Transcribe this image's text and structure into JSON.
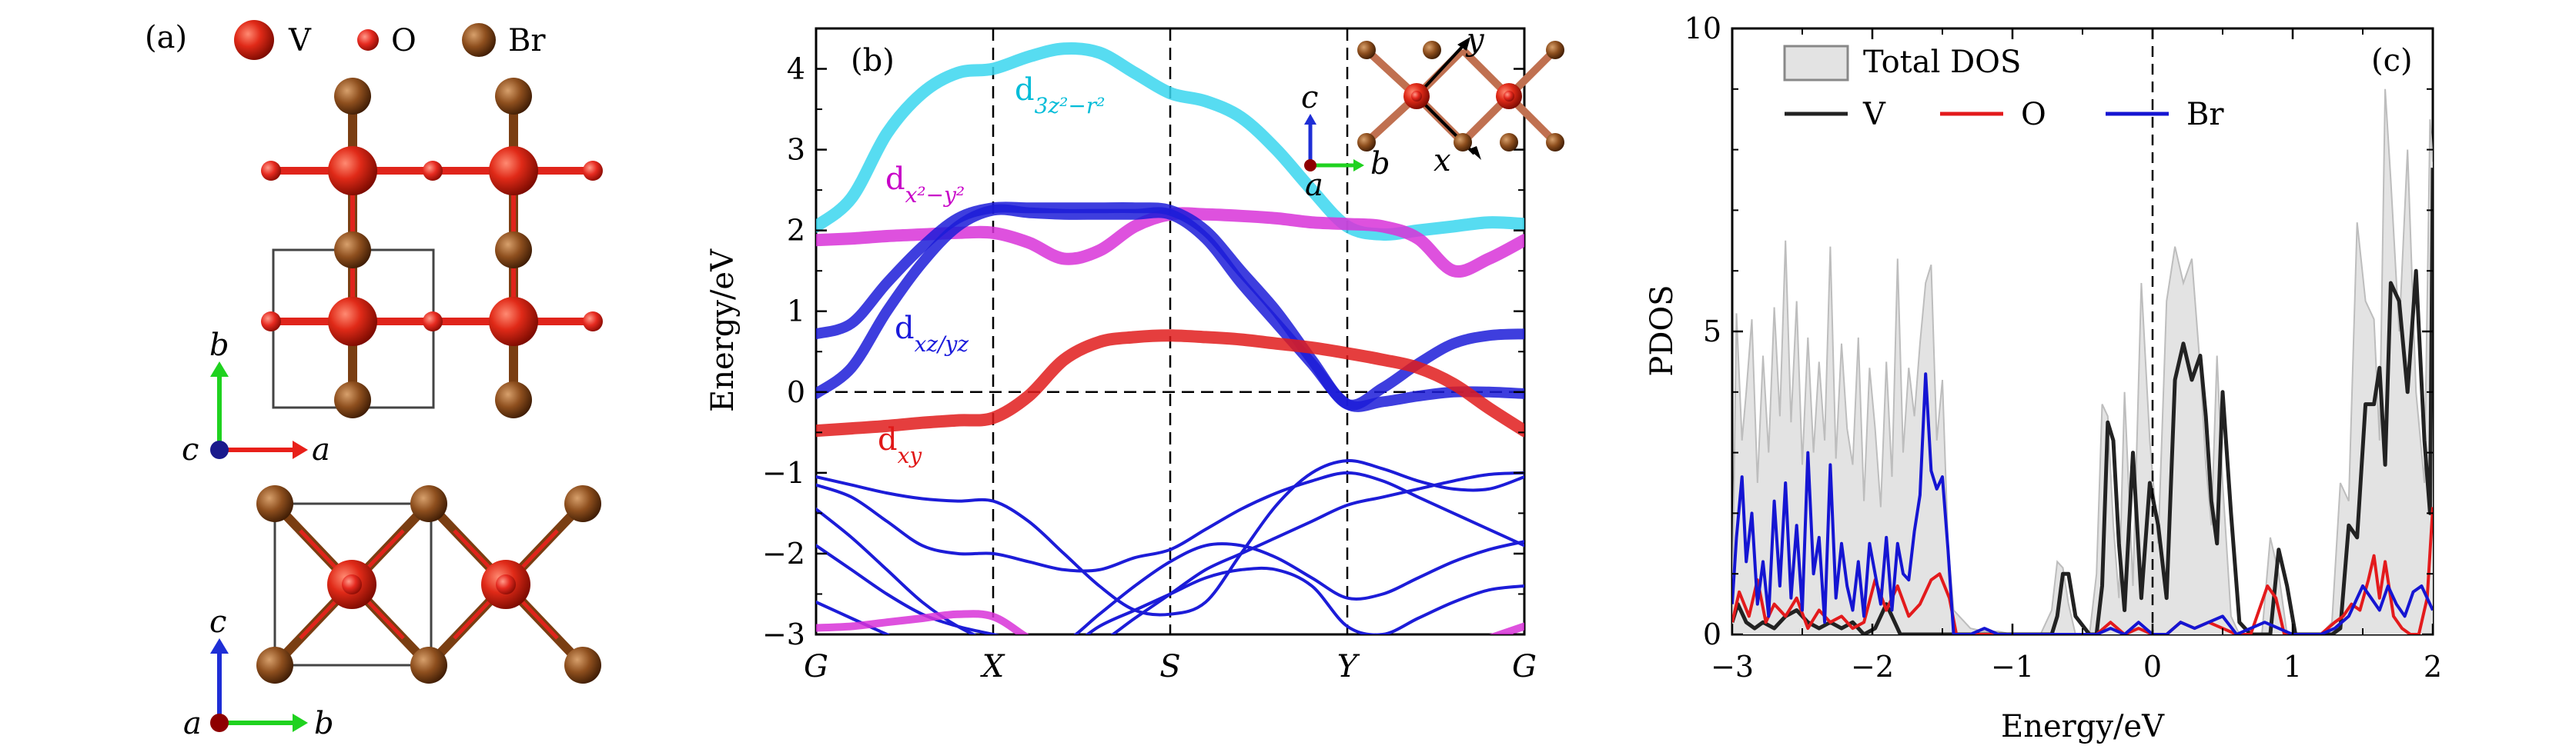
{
  "panel_a": {
    "label": "(a)",
    "legend": [
      {
        "name": "V",
        "color": "#d42416"
      },
      {
        "name": "O",
        "color": "#e2201a"
      },
      {
        "name": "Br",
        "color": "#8a4b1c"
      }
    ],
    "top_axes": {
      "vertical": "b",
      "horizontal": "a",
      "out_of_plane": "c"
    },
    "bottom_axes": {
      "vertical": "c",
      "horizontal": "b",
      "out_of_plane": "a"
    },
    "colors": {
      "bond_red": "#e0241b",
      "bond_brown": "#7a3e12",
      "cell": "#444444",
      "axis_green": "#1fd21f",
      "axis_red": "#e8201a",
      "axis_blue": "#1e2ed6",
      "dot_blue": "#1a1a8c",
      "dot_red": "#8e0000"
    }
  },
  "chart_data": [
    {
      "type": "line",
      "panel_label": "(b)",
      "ylabel": "Energy/eV",
      "ylim": [
        -3,
        4.5
      ],
      "yticks": [
        -3,
        -2,
        -1,
        0,
        1,
        2,
        3,
        4
      ],
      "kpoints": [
        "G",
        "X",
        "S",
        "Y",
        "G"
      ],
      "band_labels": [
        {
          "text": "d",
          "sub": "3z²−r²",
          "color": "#00bcd8"
        },
        {
          "text": "d",
          "sub": "x²−y²",
          "color": "#c800c8"
        },
        {
          "text": "d",
          "sub": "xz/yz",
          "color": "#1a1adb"
        },
        {
          "text": "d",
          "sub": "xy",
          "color": "#e01818"
        }
      ],
      "inset_axes": {
        "c": "c",
        "b": "b",
        "a": "a",
        "x": "x",
        "y": "y"
      },
      "bands": [
        {
          "name": "d3z2-r2",
          "color": "#39d6ee",
          "width": 16,
          "y": [
            2.05,
            2.4,
            3.2,
            3.7,
            3.95,
            4.0,
            4.15,
            4.25,
            4.2,
            3.95,
            3.7,
            3.6,
            3.4,
            3.0,
            2.5,
            2.05,
            1.95,
            2.0,
            2.05,
            2.1,
            2.08
          ]
        },
        {
          "name": "dx2-y2",
          "color": "#d832d8",
          "width": 16,
          "y": [
            1.88,
            1.9,
            1.93,
            1.95,
            1.97,
            1.97,
            1.85,
            1.65,
            1.75,
            2.05,
            2.2,
            2.2,
            2.18,
            2.15,
            2.1,
            2.08,
            2.05,
            1.9,
            1.5,
            1.65,
            1.88
          ]
        },
        {
          "name": "dxz/yz-1",
          "color": "#1c1cd8",
          "width": 14,
          "y": [
            0.72,
            0.85,
            1.35,
            1.8,
            2.15,
            2.28,
            2.28,
            2.28,
            2.28,
            2.28,
            2.25,
            2.0,
            1.5,
            1.0,
            0.4,
            -0.15,
            0.05,
            0.35,
            0.6,
            0.7,
            0.72
          ]
        },
        {
          "name": "dxz/yz-2",
          "color": "#1c1cd8",
          "width": 14,
          "y": [
            -0.02,
            0.3,
            1.0,
            1.6,
            2.05,
            2.25,
            2.22,
            2.2,
            2.2,
            2.2,
            2.2,
            1.9,
            1.35,
            0.85,
            0.35,
            -0.15,
            -0.12,
            -0.05,
            0.0,
            0.0,
            -0.02
          ]
        },
        {
          "name": "dxy",
          "color": "#e01c1c",
          "width": 16,
          "y": [
            -0.48,
            -0.45,
            -0.42,
            -0.38,
            -0.35,
            -0.32,
            -0.05,
            0.4,
            0.62,
            0.68,
            0.7,
            0.68,
            0.65,
            0.6,
            0.55,
            0.48,
            0.4,
            0.3,
            0.1,
            -0.2,
            -0.48
          ]
        },
        {
          "name": "valence-1",
          "color": "#1c1cd8",
          "width": 4,
          "y": [
            -1.05,
            -1.15,
            -1.25,
            -1.32,
            -1.35,
            -1.35,
            -1.6,
            -2.0,
            -2.4,
            -2.7,
            -2.75,
            -2.6,
            -2.0,
            -1.4,
            -1.0,
            -0.85,
            -0.95,
            -1.1,
            -1.2,
            -1.2,
            -1.05
          ]
        },
        {
          "name": "valence-2",
          "color": "#1c1cd8",
          "width": 4,
          "y": [
            -1.15,
            -1.3,
            -1.6,
            -1.9,
            -2.0,
            -2.0,
            -2.1,
            -2.2,
            -2.2,
            -2.05,
            -1.95,
            -1.7,
            -1.45,
            -1.25,
            -1.1,
            -1.0,
            -1.1,
            -1.3,
            -1.5,
            -1.7,
            -1.9
          ]
        },
        {
          "name": "valence-3",
          "color": "#1c1cd8",
          "width": 4,
          "y": [
            -1.9,
            -2.2,
            -2.5,
            -2.75,
            -2.9,
            -3.0,
            -3.1,
            -3.2,
            -3.1,
            -2.8,
            -2.5,
            -2.2,
            -2.0,
            -1.8,
            -1.6,
            -1.4,
            -1.3,
            -1.2,
            -1.1,
            -1.02,
            -1.0
          ]
        },
        {
          "name": "valence-4",
          "color": "#1c1cd8",
          "width": 4,
          "y": [
            -1.45,
            -1.8,
            -2.2,
            -2.6,
            -2.9,
            -3.1,
            -3.2,
            -3.1,
            -2.75,
            -2.4,
            -2.1,
            -1.9,
            -1.9,
            -2.05,
            -2.3,
            -2.55,
            -2.5,
            -2.3,
            -2.1,
            -1.95,
            -1.85
          ]
        },
        {
          "name": "valence-5",
          "color": "#1c1cd8",
          "width": 4,
          "y": [
            -2.6,
            -2.8,
            -3.0,
            -3.2,
            -3.3,
            -3.3,
            -3.3,
            -3.2,
            -2.9,
            -2.7,
            -2.5,
            -2.3,
            -2.2,
            -2.2,
            -2.4,
            -2.9,
            -3.0,
            -2.8,
            -2.6,
            -2.45,
            -2.4
          ]
        },
        {
          "name": "magenta-low",
          "color": "#d832d8",
          "width": 10,
          "y": [
            -2.92,
            -2.9,
            -2.85,
            -2.8,
            -2.75,
            -2.78,
            -3.05,
            -3.3,
            -3.3,
            -3.3,
            -3.3,
            -3.3,
            -3.3,
            -3.3,
            -3.3,
            -3.3,
            -3.3,
            -3.3,
            -3.2,
            -3.05,
            -2.9
          ]
        }
      ]
    },
    {
      "type": "area",
      "panel_label": "(c)",
      "xlabel": "Energy/eV",
      "ylabel": "PDOS",
      "xlim": [
        -3,
        2
      ],
      "ylim": [
        0,
        10
      ],
      "xticks": [
        -3,
        -2,
        -1,
        0,
        1,
        2
      ],
      "xtick_labels": [
        "−3",
        "−2",
        "−1",
        "0",
        "1",
        "2"
      ],
      "yticks": [
        0,
        5,
        10
      ],
      "legend_placement": "top-left",
      "series": [
        {
          "name": "Total DOS",
          "color": "#bdbdbd",
          "fill": "#e3e3e3",
          "x": [
            -3.0,
            -2.97,
            -2.93,
            -2.9,
            -2.86,
            -2.82,
            -2.78,
            -2.74,
            -2.7,
            -2.66,
            -2.62,
            -2.58,
            -2.54,
            -2.5,
            -2.46,
            -2.42,
            -2.38,
            -2.34,
            -2.3,
            -2.26,
            -2.22,
            -2.18,
            -2.14,
            -2.1,
            -2.06,
            -2.02,
            -1.98,
            -1.94,
            -1.9,
            -1.86,
            -1.82,
            -1.78,
            -1.74,
            -1.7,
            -1.66,
            -1.62,
            -1.58,
            -1.54,
            -1.5,
            -1.46,
            -1.42,
            -1.3,
            -1.2,
            -1.1,
            -1.0,
            -0.8,
            -0.72,
            -0.68,
            -0.64,
            -0.6,
            -0.55,
            -0.45,
            -0.4,
            -0.36,
            -0.32,
            -0.28,
            -0.24,
            -0.2,
            -0.14,
            -0.08,
            -0.02,
            0.04,
            0.1,
            0.16,
            0.22,
            0.28,
            0.34,
            0.38,
            0.42,
            0.46,
            0.5,
            0.56,
            0.62,
            0.7,
            0.78,
            0.84,
            0.9,
            0.96,
            1.02,
            1.1,
            1.2,
            1.28,
            1.34,
            1.4,
            1.46,
            1.52,
            1.58,
            1.62,
            1.66,
            1.7,
            1.76,
            1.82,
            1.88,
            1.94,
            1.98,
            2.0
          ],
          "y": [
            0.3,
            5.3,
            3.2,
            4.0,
            5.2,
            2.5,
            4.6,
            3.0,
            5.4,
            3.6,
            6.5,
            3.5,
            5.5,
            2.8,
            4.9,
            3.0,
            4.5,
            3.2,
            6.4,
            2.9,
            4.8,
            3.4,
            2.8,
            4.9,
            2.2,
            4.4,
            3.4,
            2.1,
            4.5,
            2.6,
            6.2,
            3.0,
            4.4,
            3.6,
            4.8,
            5.8,
            6.1,
            3.2,
            4.2,
            1.5,
            0.4,
            0.1,
            0.05,
            0.05,
            0.0,
            0.0,
            0.4,
            1.2,
            1.1,
            0.5,
            0.0,
            0.0,
            1.0,
            3.8,
            3.6,
            1.8,
            0.6,
            4.0,
            0.8,
            5.8,
            3.2,
            1.5,
            5.5,
            6.4,
            5.8,
            6.2,
            4.4,
            2.8,
            1.8,
            4.6,
            2.5,
            0.3,
            0.0,
            0.0,
            0.0,
            1.6,
            1.0,
            0.0,
            0.0,
            0.0,
            0.0,
            0.2,
            2.5,
            2.2,
            6.8,
            5.5,
            5.2,
            3.2,
            9.0,
            7.5,
            5.0,
            8.0,
            4.0,
            2.5,
            8.5,
            7.8
          ]
        },
        {
          "name": "V",
          "color": "#222222",
          "x": [
            -3.0,
            -2.96,
            -2.9,
            -2.84,
            -2.78,
            -2.7,
            -2.62,
            -2.54,
            -2.46,
            -2.38,
            -2.3,
            -2.22,
            -2.14,
            -2.06,
            -1.98,
            -1.9,
            -1.8,
            -1.7,
            -1.6,
            -1.5,
            -1.45,
            -1.4,
            -1.2,
            -1.0,
            -0.8,
            -0.72,
            -0.68,
            -0.64,
            -0.6,
            -0.55,
            -0.45,
            -0.4,
            -0.36,
            -0.32,
            -0.28,
            -0.24,
            -0.2,
            -0.14,
            -0.08,
            -0.02,
            0.04,
            0.1,
            0.16,
            0.22,
            0.28,
            0.34,
            0.38,
            0.42,
            0.46,
            0.5,
            0.56,
            0.62,
            0.7,
            0.78,
            0.84,
            0.9,
            0.96,
            1.02,
            1.1,
            1.2,
            1.28,
            1.34,
            1.4,
            1.46,
            1.52,
            1.58,
            1.62,
            1.66,
            1.7,
            1.76,
            1.82,
            1.88,
            1.94,
            1.98,
            2.0
          ],
          "y": [
            0.2,
            0.5,
            0.2,
            0.1,
            0.2,
            0.1,
            0.3,
            0.4,
            0.2,
            0.1,
            0.2,
            0.1,
            0.2,
            0.0,
            0.1,
            0.5,
            0.0,
            0.0,
            0.0,
            0.0,
            0.0,
            0.0,
            0.0,
            0.0,
            0.0,
            0.0,
            0.3,
            1.0,
            1.0,
            0.3,
            0.0,
            0.0,
            0.8,
            3.5,
            3.2,
            1.5,
            0.4,
            3.0,
            0.6,
            2.5,
            1.8,
            0.6,
            4.2,
            4.8,
            4.2,
            4.6,
            3.6,
            2.2,
            1.5,
            4.0,
            2.0,
            0.2,
            0.0,
            0.0,
            0.0,
            1.4,
            0.8,
            0.0,
            0.0,
            0.0,
            0.0,
            0.1,
            1.8,
            1.6,
            3.8,
            3.8,
            4.4,
            2.8,
            5.8,
            5.5,
            4.0,
            6.0,
            3.2,
            2.0,
            7.7
          ]
        },
        {
          "name": "O",
          "color": "#e31a1c",
          "x": [
            -3.0,
            -2.95,
            -2.88,
            -2.82,
            -2.76,
            -2.7,
            -2.62,
            -2.54,
            -2.46,
            -2.38,
            -2.3,
            -2.22,
            -2.14,
            -2.06,
            -1.98,
            -1.9,
            -1.82,
            -1.74,
            -1.66,
            -1.58,
            -1.52,
            -1.45,
            -1.4,
            -1.2,
            -1.0,
            -0.6,
            -0.4,
            -0.3,
            -0.2,
            -0.1,
            0.0,
            0.1,
            0.2,
            0.3,
            0.4,
            0.5,
            0.6,
            0.7,
            0.76,
            0.82,
            0.88,
            0.94,
            1.0,
            1.1,
            1.2,
            1.3,
            1.36,
            1.42,
            1.48,
            1.54,
            1.58,
            1.62,
            1.66,
            1.72,
            1.78,
            1.84,
            1.9,
            1.96,
            2.0
          ],
          "y": [
            0.2,
            0.7,
            0.3,
            0.9,
            0.2,
            0.5,
            0.3,
            0.6,
            0.1,
            0.4,
            0.2,
            0.3,
            0.1,
            0.2,
            0.9,
            0.4,
            0.8,
            0.3,
            0.5,
            0.9,
            1.0,
            0.6,
            0.0,
            0.0,
            0.0,
            0.0,
            0.0,
            0.2,
            0.0,
            0.1,
            0.0,
            0.0,
            0.2,
            0.1,
            0.2,
            0.1,
            0.0,
            0.0,
            0.4,
            0.8,
            0.6,
            0.0,
            0.0,
            0.0,
            0.0,
            0.2,
            0.3,
            0.5,
            0.4,
            0.9,
            1.3,
            0.6,
            1.2,
            0.3,
            0.1,
            0.0,
            0.0,
            0.6,
            2.1
          ]
        },
        {
          "name": "Br",
          "color": "#1515d2",
          "x": [
            -3.0,
            -2.97,
            -2.93,
            -2.9,
            -2.86,
            -2.82,
            -2.78,
            -2.74,
            -2.7,
            -2.66,
            -2.62,
            -2.58,
            -2.54,
            -2.5,
            -2.46,
            -2.42,
            -2.38,
            -2.34,
            -2.3,
            -2.26,
            -2.22,
            -2.18,
            -2.14,
            -2.1,
            -2.06,
            -2.02,
            -1.98,
            -1.94,
            -1.9,
            -1.86,
            -1.82,
            -1.78,
            -1.74,
            -1.7,
            -1.66,
            -1.62,
            -1.58,
            -1.54,
            -1.5,
            -1.46,
            -1.42,
            -1.3,
            -1.2,
            -1.1,
            -1.0,
            -0.6,
            -0.4,
            -0.3,
            -0.2,
            -0.1,
            0.0,
            0.1,
            0.2,
            0.3,
            0.4,
            0.5,
            0.6,
            0.7,
            0.8,
            0.9,
            1.0,
            1.1,
            1.2,
            1.3,
            1.4,
            1.5,
            1.56,
            1.62,
            1.68,
            1.74,
            1.8,
            1.86,
            1.92,
            2.0
          ],
          "y": [
            0.5,
            1.6,
            2.6,
            1.2,
            2.0,
            0.5,
            1.2,
            0.3,
            2.2,
            0.8,
            2.5,
            0.6,
            1.8,
            0.4,
            3.0,
            1.0,
            1.6,
            0.2,
            2.8,
            0.6,
            1.5,
            0.8,
            0.4,
            1.2,
            0.3,
            1.5,
            1.0,
            0.5,
            1.6,
            0.4,
            1.5,
            1.0,
            0.9,
            1.7,
            2.3,
            4.3,
            2.7,
            2.4,
            2.6,
            1.4,
            0.0,
            0.0,
            0.1,
            0.0,
            0.0,
            0.0,
            0.0,
            0.1,
            0.0,
            0.2,
            0.0,
            0.0,
            0.2,
            0.1,
            0.2,
            0.3,
            0.0,
            0.1,
            0.2,
            0.1,
            0.0,
            0.0,
            0.0,
            0.1,
            0.3,
            0.8,
            0.6,
            0.4,
            0.8,
            0.5,
            0.3,
            0.7,
            0.8,
            0.4
          ]
        }
      ]
    }
  ]
}
